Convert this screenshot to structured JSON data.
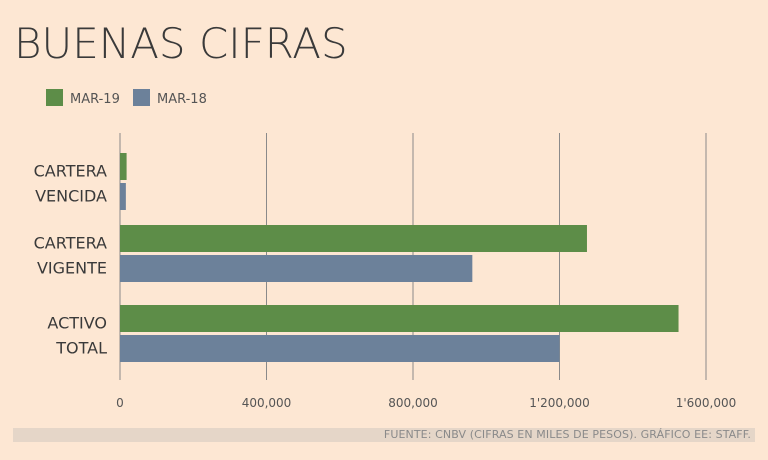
{
  "title": "BUENAS CIFRAS",
  "source": "FUENTE: CNBV (CIFRAS EN MILES DE PESOS). GRÁFICO EE: STAFF.",
  "colors": {
    "background": "#fde7d3",
    "mar19": "#5d8d48",
    "mar18": "#6c819a",
    "grid": "#8a8a8a",
    "footer_band": "#e5d6c8"
  },
  "chart_data": {
    "type": "bar",
    "orientation": "horizontal",
    "categories": [
      [
        "CARTERA",
        "VENCIDA"
      ],
      [
        "CARTERA",
        "VIGENTE"
      ],
      [
        "ACTIVO",
        "TOTAL"
      ]
    ],
    "series": [
      {
        "name": "MAR-19",
        "values": [
          18000,
          1275000,
          1525000
        ]
      },
      {
        "name": "MAR-18",
        "values": [
          16000,
          962000,
          1200000
        ]
      }
    ],
    "xlim": [
      0,
      1600000
    ],
    "ticks": [
      0,
      400000,
      800000,
      1200000,
      1600000
    ],
    "tick_labels": [
      "0",
      "400,000",
      "800,000",
      "1'200,000",
      "1'600,000"
    ],
    "grid": "vertical",
    "legend_position": "top-left"
  }
}
